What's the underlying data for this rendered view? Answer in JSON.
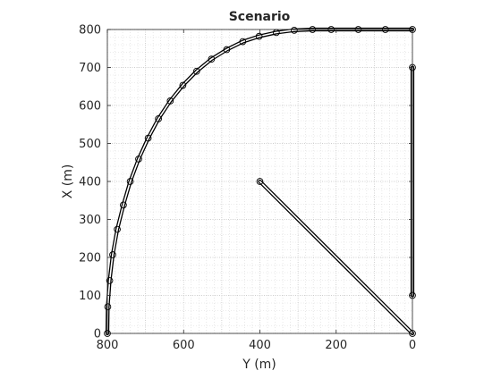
{
  "chart_data": {
    "type": "line",
    "title": "Scenario",
    "xlabel": "Y (m)",
    "ylabel": "X (m)",
    "x_direction": "reversed",
    "xlim": [
      0,
      800
    ],
    "ylim": [
      0,
      800
    ],
    "xticks": [
      800,
      600,
      400,
      200,
      0
    ],
    "yticks": [
      0,
      100,
      200,
      300,
      400,
      500,
      600,
      700,
      800
    ],
    "grid": "major and minor, dotted",
    "legend": "none",
    "series": [
      {
        "style": "double-line with circle markers",
        "points": [
          [
            800,
            0
          ],
          [
            799,
            70
          ],
          [
            794,
            139
          ],
          [
            786,
            207
          ],
          [
            774,
            274
          ],
          [
            758,
            338
          ],
          [
            740,
            400
          ],
          [
            718,
            459
          ],
          [
            693,
            514
          ],
          [
            666,
            565
          ],
          [
            635,
            612
          ],
          [
            602,
            653
          ],
          [
            566,
            690
          ],
          [
            527,
            722
          ],
          [
            487,
            747
          ],
          [
            445,
            768
          ],
          [
            402,
            782
          ],
          [
            357,
            792
          ],
          [
            310,
            798
          ],
          [
            262,
            800
          ],
          [
            213,
            800
          ],
          [
            142,
            800
          ],
          [
            71,
            800
          ],
          [
            0,
            800
          ]
        ]
      },
      {
        "style": "double-line with circle markers",
        "points": [
          [
            0,
            700
          ],
          [
            0,
            100
          ]
        ]
      },
      {
        "style": "double-line with circle markers",
        "points": [
          [
            400,
            400
          ],
          [
            0,
            0
          ]
        ]
      }
    ],
    "colors": {
      "line": "#000000",
      "grid": "#bfbfbf",
      "axis": "#262626"
    }
  }
}
